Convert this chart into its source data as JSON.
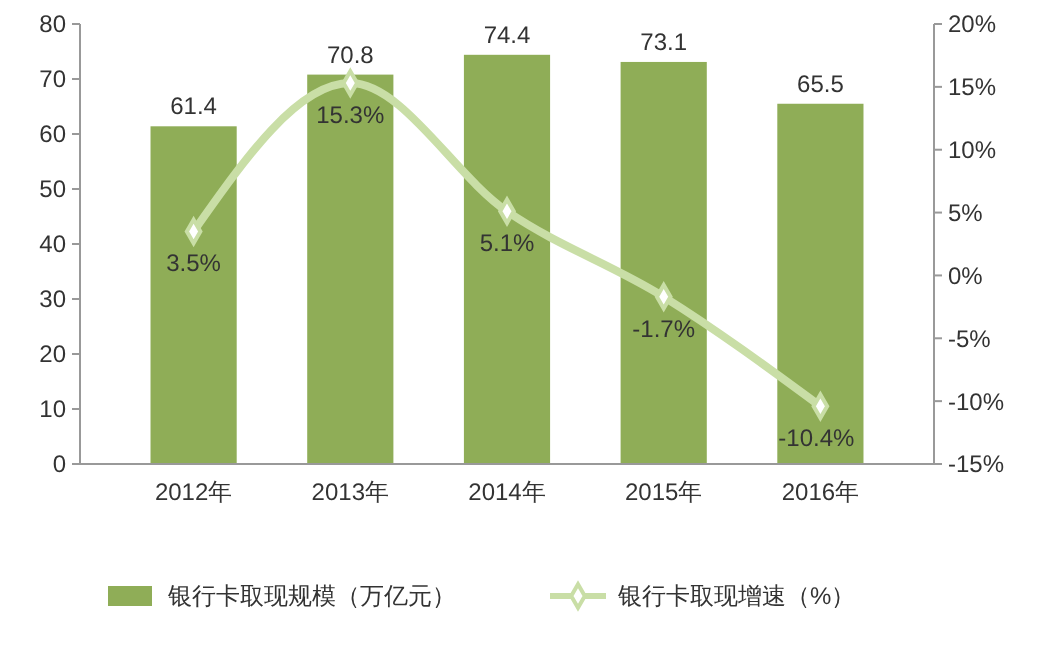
{
  "chart_data": {
    "type": "bar",
    "categories": [
      "2012年",
      "2013年",
      "2014年",
      "2015年",
      "2016年"
    ],
    "series": [
      {
        "name": "银行卡取现规模（万亿元）",
        "color": "#8fad57",
        "values": [
          61.4,
          70.8,
          74.4,
          73.1,
          65.5
        ],
        "value_labels": [
          "61.4",
          "70.8",
          "74.4",
          "73.1",
          "65.5"
        ]
      },
      {
        "name": "银行卡取现增速（%）",
        "type": "line",
        "axis": "y2",
        "color": "#c9dea6",
        "values": [
          3.5,
          15.3,
          5.1,
          -1.7,
          -10.4
        ],
        "value_labels": [
          "3.5%",
          "15.3%",
          "5.1%",
          "-1.7%",
          "-10.4%"
        ],
        "marker": "diamond"
      }
    ],
    "ylim": [
      0,
      80
    ],
    "yticks": [
      0,
      10,
      20,
      30,
      40,
      50,
      60,
      70,
      80
    ],
    "y2lim": [
      -15,
      20
    ],
    "y2ticks": [
      {
        "value": -15,
        "label": "-15%"
      },
      {
        "value": -10,
        "label": "-10%"
      },
      {
        "value": -5,
        "label": "-5%"
      },
      {
        "value": 0,
        "label": "0%"
      },
      {
        "value": 5,
        "label": "5%"
      },
      {
        "value": 10,
        "label": "10%"
      },
      {
        "value": 15,
        "label": "15%"
      },
      {
        "value": 20,
        "label": "20%"
      }
    ],
    "legend": "bottom",
    "grid": false
  }
}
